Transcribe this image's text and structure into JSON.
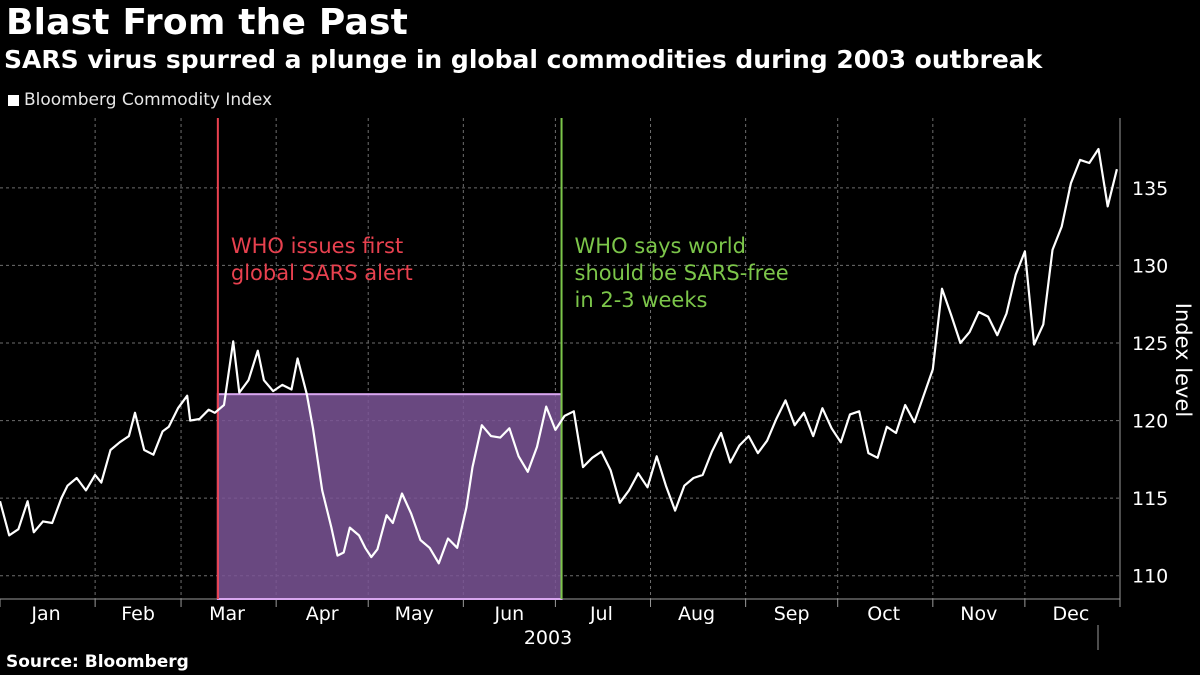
{
  "title": "Blast From the Past",
  "subtitle": "SARS virus spurred a plunge in global commodities during 2003 outbreak",
  "source": "Source: Bloomberg",
  "colors": {
    "background": "#000000",
    "line": "#ffffff",
    "alert_line": "#e8414f",
    "free_line": "#7cc64a",
    "shade_fill": "#7b5597",
    "shade_edge": "#d9a6f0",
    "grid": "#6e6e6e",
    "text": "#ffffff"
  },
  "chart_data": {
    "type": "line",
    "series": [
      {
        "name": "Bloomberg Commodity Index",
        "x": [
          0,
          3,
          6,
          9,
          11,
          14,
          17,
          20,
          22,
          25,
          28,
          31,
          33,
          36,
          39,
          42,
          44,
          47,
          50,
          53,
          55,
          58,
          61,
          62,
          65,
          68,
          70,
          73,
          76,
          78,
          81,
          84,
          86,
          89,
          92,
          95,
          97,
          100,
          102,
          105,
          108,
          110,
          112,
          114,
          117,
          119,
          121,
          123,
          126,
          128,
          131,
          134,
          137,
          140,
          143,
          146,
          149,
          152,
          154,
          157,
          160,
          163,
          166,
          169,
          172,
          175,
          178,
          181,
          184,
          187,
          190,
          193,
          196,
          199,
          202,
          205,
          208,
          211,
          214,
          217,
          220,
          223,
          226,
          229,
          232,
          235,
          238,
          241,
          244,
          247,
          250,
          253,
          256,
          259,
          262,
          265,
          268,
          271,
          274,
          277,
          280,
          283,
          286,
          289,
          292,
          295,
          298,
          301,
          304,
          307,
          310,
          313,
          316,
          319,
          322,
          325,
          328,
          331,
          334,
          337,
          340,
          343,
          346,
          349,
          352,
          355,
          358,
          361,
          364
        ],
        "values": [
          114.8,
          112.6,
          113.0,
          114.8,
          112.8,
          113.5,
          113.4,
          115.0,
          115.8,
          116.3,
          115.5,
          116.5,
          116.0,
          118.1,
          118.6,
          119.0,
          120.5,
          118.1,
          117.8,
          119.3,
          119.6,
          120.8,
          121.6,
          120.0,
          120.1,
          120.7,
          120.5,
          121.0,
          125.1,
          121.8,
          122.6,
          124.5,
          122.6,
          121.9,
          122.3,
          122.0,
          124.0,
          121.7,
          119.5,
          115.5,
          113.1,
          111.3,
          111.5,
          113.1,
          112.6,
          111.8,
          111.2,
          111.7,
          113.9,
          113.4,
          115.3,
          114.0,
          112.3,
          111.8,
          110.8,
          112.4,
          111.8,
          114.4,
          117.0,
          119.7,
          119.0,
          118.9,
          119.5,
          117.7,
          116.7,
          118.3,
          120.9,
          119.4,
          120.3,
          120.6,
          117.0,
          117.6,
          118.0,
          116.8,
          114.7,
          115.5,
          116.6,
          115.7,
          117.7,
          115.8,
          114.2,
          115.8,
          116.3,
          116.5,
          118.0,
          119.2,
          117.3,
          118.4,
          119.0,
          117.9,
          118.7,
          120.1,
          121.3,
          119.7,
          120.5,
          119.0,
          120.8,
          119.5,
          118.6,
          120.4,
          120.6,
          117.9,
          117.6,
          119.6,
          119.2,
          121.0,
          119.9,
          121.6,
          123.3,
          128.5,
          126.8,
          125.0,
          125.7,
          127.0,
          126.7,
          125.5,
          126.9,
          129.4,
          130.9,
          124.9,
          126.2,
          131.0,
          132.5,
          135.3,
          136.8,
          136.6,
          137.5,
          133.8,
          136.2
        ]
      }
    ],
    "x_ticks": [
      "Jan",
      "Feb",
      "Mar",
      "Apr",
      "May",
      "Jun",
      "Jul",
      "Aug",
      "Sep",
      "Oct",
      "Nov",
      "Dec"
    ],
    "x_tick_days": [
      15,
      45,
      74,
      105,
      135,
      166,
      196,
      227,
      258,
      288,
      319,
      349
    ],
    "x_year_label": "2003",
    "ylabel": "Index level",
    "ylim": [
      108.5,
      139.5
    ],
    "y_ticks": [
      110,
      115,
      120,
      125,
      130,
      135
    ],
    "xlim": [
      0,
      365
    ],
    "grid": "dashed, both axes",
    "legend": "top-left",
    "y_axis_side": "right",
    "annotations": [
      {
        "text_lines": [
          "WHO issues first",
          "global SARS alert"
        ],
        "day": 71,
        "color": "alert_line"
      },
      {
        "text_lines": [
          "WHO says world",
          "should be SARS-free",
          "in 2-3 weeks"
        ],
        "day": 183,
        "color": "free_line"
      }
    ],
    "shaded_region": {
      "x_start_day": 71,
      "x_end_day": 183,
      "y_top": 121.7
    }
  }
}
